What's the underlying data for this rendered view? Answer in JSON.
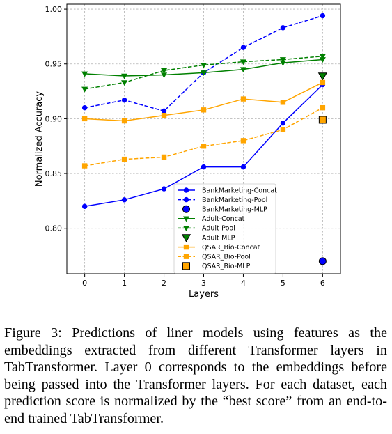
{
  "chart_data": {
    "type": "line",
    "xlabel": "Layers",
    "ylabel": "Normalized Accuracy",
    "x": [
      0,
      1,
      2,
      3,
      4,
      5,
      6
    ],
    "xticks": [
      "0",
      "1",
      "2",
      "3",
      "4",
      "5",
      "6"
    ],
    "yticks": [
      "0.80",
      "0.85",
      "0.90",
      "0.95",
      "1.00"
    ],
    "xlim": [
      -0.45,
      6.45
    ],
    "ylim": [
      0.7585,
      1.0045
    ],
    "grid": true,
    "legend_position": "lower-right",
    "series": [
      {
        "name": "BankMarketing-Concat",
        "kind": "line",
        "color": "#0000ff",
        "dash": "solid",
        "marker": "circle",
        "values": [
          0.82,
          0.826,
          0.836,
          0.856,
          0.856,
          0.896,
          0.931
        ]
      },
      {
        "name": "BankMarketing-Pool",
        "kind": "line",
        "color": "#0000ff",
        "dash": "dashed",
        "marker": "circle",
        "values": [
          0.91,
          0.917,
          0.907,
          0.942,
          0.965,
          0.983,
          0.994
        ]
      },
      {
        "name": "BankMarketing-MLP",
        "kind": "point",
        "color": "#000000",
        "fill": "#0000ff",
        "marker": "big-circle",
        "x": 6,
        "value": 0.77
      },
      {
        "name": "Adult-Concat",
        "kind": "line",
        "color": "#008000",
        "dash": "solid",
        "marker": "triangle-down",
        "values": [
          0.941,
          0.939,
          0.94,
          0.942,
          0.945,
          0.951,
          0.954
        ]
      },
      {
        "name": "Adult-Pool",
        "kind": "line",
        "color": "#008000",
        "dash": "dashed",
        "marker": "triangle-down",
        "values": [
          0.927,
          0.933,
          0.944,
          0.949,
          0.952,
          0.954,
          0.957
        ]
      },
      {
        "name": "Adult-MLP",
        "kind": "point",
        "color": "#000000",
        "fill": "#008000",
        "marker": "big-triangle-down",
        "x": 6,
        "value": 0.939
      },
      {
        "name": "QSAR_Bio-Concat",
        "kind": "line",
        "color": "#ffa500",
        "dash": "solid",
        "marker": "square",
        "values": [
          0.9,
          0.898,
          0.903,
          0.908,
          0.918,
          0.915,
          0.933
        ]
      },
      {
        "name": "QSAR_Bio-Pool",
        "kind": "line",
        "color": "#ffa500",
        "dash": "dashed",
        "marker": "square",
        "values": [
          0.857,
          0.863,
          0.865,
          0.875,
          0.88,
          0.89,
          0.91
        ]
      },
      {
        "name": "QSAR_Bio-MLP",
        "kind": "point",
        "color": "#000000",
        "fill": "#ffa500",
        "marker": "big-square",
        "x": 6,
        "value": 0.899
      }
    ]
  },
  "caption": "Figure 3: Predictions of liner models using features as the embeddings extracted from different Transformer layers in TabTransformer. Layer 0 corresponds to the embeddings before being passed into the Transformer layers. For each dataset, each prediction score is normalized by the “best score” from an end-to-end trained TabTransformer."
}
